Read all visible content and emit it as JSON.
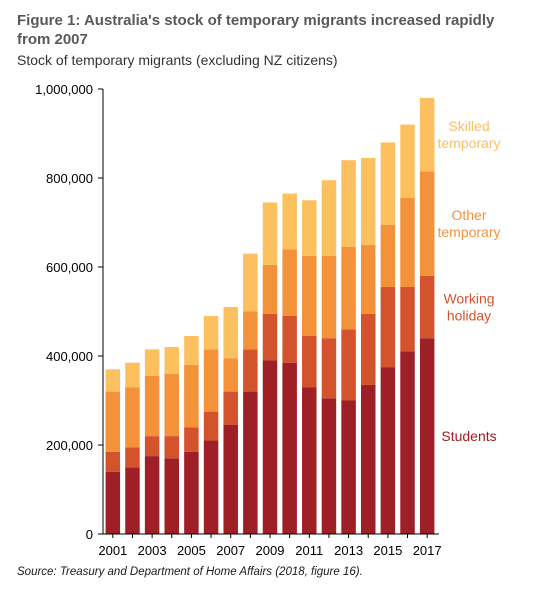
{
  "figure": {
    "title": "Figure 1: Australia's stock of temporary migrants increased rapidly from 2007",
    "subtitle": "Stock of temporary migrants (excluding NZ citizens)",
    "source": "Source: Treasury and Department of Home Affairs (2018, figure 16)."
  },
  "chart_data": {
    "type": "bar",
    "stacked": true,
    "title": "Figure 1: Australia's stock of temporary migrants increased rapidly from 2007",
    "subtitle": "Stock of temporary migrants (excluding NZ citizens)",
    "xlabel": "",
    "ylabel": "",
    "ylim": [
      0,
      1000000
    ],
    "yticks": [
      0,
      200000,
      400000,
      600000,
      800000,
      1000000
    ],
    "ytick_labels": [
      "0",
      "200,000",
      "400,000",
      "600,000",
      "800,000",
      "1,000,000"
    ],
    "categories": [
      "2001",
      "2002",
      "2003",
      "2004",
      "2005",
      "2006",
      "2007",
      "2008",
      "2009",
      "2010",
      "2011",
      "2012",
      "2013",
      "2014",
      "2015",
      "2016",
      "2017"
    ],
    "xtick_labels": [
      "2001",
      "",
      "2003",
      "",
      "2005",
      "",
      "2007",
      "",
      "2009",
      "",
      "2011",
      "",
      "2013",
      "",
      "2015",
      "",
      "2017"
    ],
    "grid": false,
    "legend": "direct labels at right",
    "series": [
      {
        "name": "Students",
        "color": "#9e1f26",
        "values": [
          140000,
          150000,
          175000,
          170000,
          185000,
          210000,
          245000,
          320000,
          390000,
          385000,
          330000,
          305000,
          300000,
          335000,
          375000,
          410000,
          440000
        ]
      },
      {
        "name": "Working holiday",
        "color": "#d2532c",
        "values": [
          45000,
          45000,
          45000,
          50000,
          55000,
          65000,
          75000,
          95000,
          105000,
          105000,
          115000,
          135000,
          160000,
          160000,
          180000,
          145000,
          140000
        ]
      },
      {
        "name": "Other temporary",
        "color": "#f4923a",
        "values": [
          135000,
          135000,
          135000,
          140000,
          140000,
          140000,
          75000,
          85000,
          110000,
          150000,
          180000,
          185000,
          185000,
          155000,
          140000,
          200000,
          235000
        ]
      },
      {
        "name": "Skilled temporary",
        "color": "#fcc05f",
        "values": [
          50000,
          55000,
          60000,
          60000,
          65000,
          75000,
          115000,
          130000,
          140000,
          125000,
          125000,
          170000,
          195000,
          195000,
          185000,
          165000,
          165000
        ]
      }
    ],
    "series_labels": [
      {
        "lines": [
          "Students"
        ],
        "color": "#9e1f26"
      },
      {
        "lines": [
          "Working",
          "holiday"
        ],
        "color": "#d2532c"
      },
      {
        "lines": [
          "Other",
          "temporary"
        ],
        "color": "#f4923a"
      },
      {
        "lines": [
          "Skilled",
          "temporary"
        ],
        "color": "#fcc05f"
      }
    ]
  }
}
